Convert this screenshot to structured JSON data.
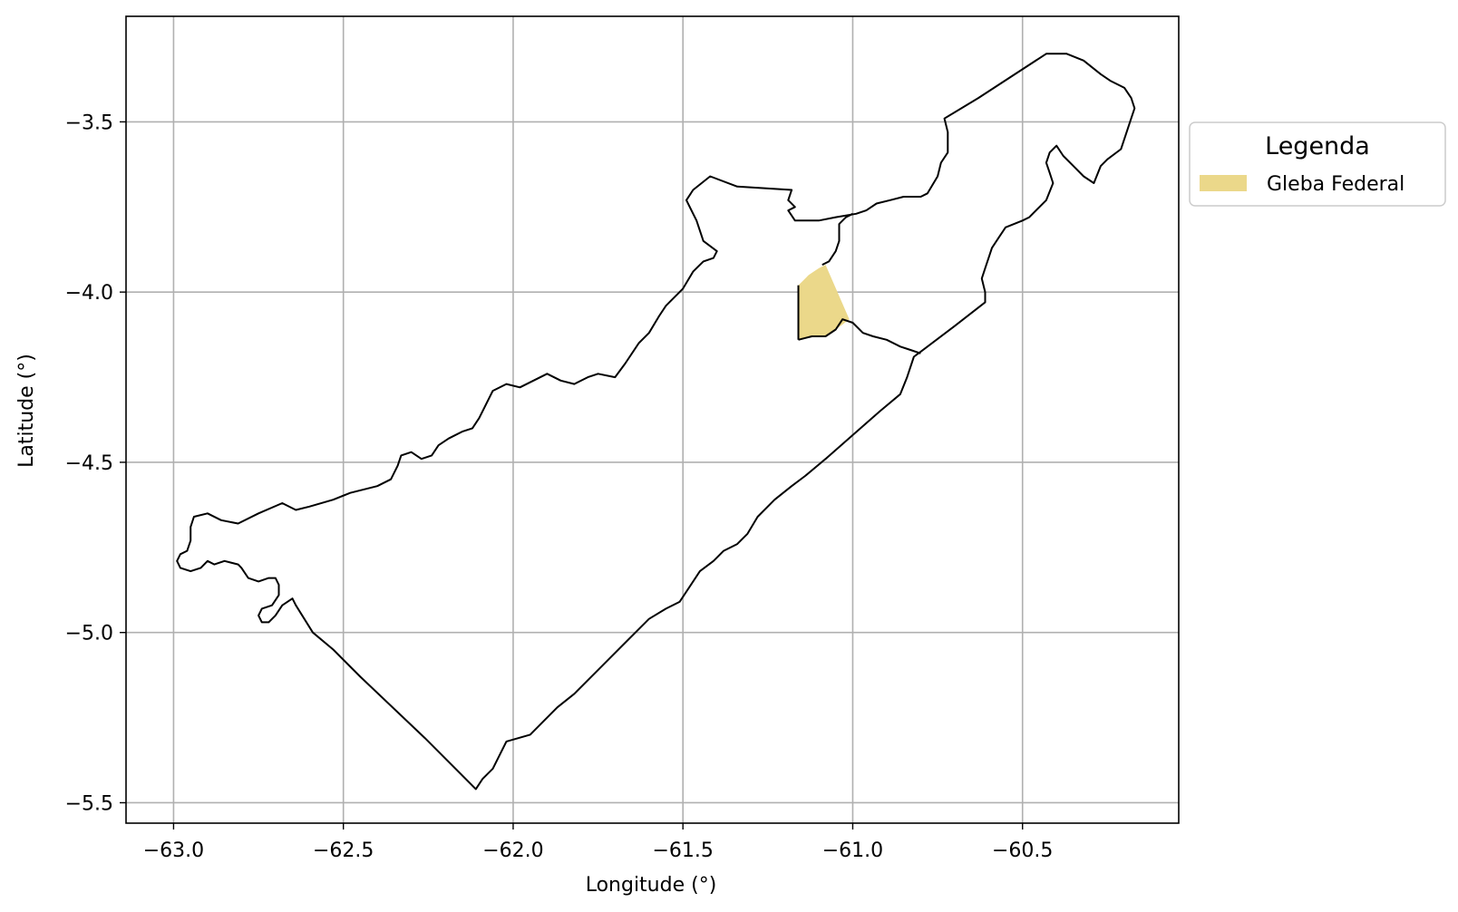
{
  "xlabel": "Longitude (°)",
  "ylabel": "Latitude (°)",
  "legend": {
    "title": "Legenda",
    "entries": [
      {
        "label": "Gleba Federal",
        "color": "#ebd88a"
      }
    ]
  },
  "colors": {
    "boundary": "#000000",
    "grid": "#b0b0b0",
    "gleba_fill": "#ebd88a"
  },
  "map_data": {
    "type": "map",
    "xlim": [
      -63.14,
      -60.04
    ],
    "ylim": [
      -5.56,
      -3.19
    ],
    "x_ticks": [
      -63.0,
      -62.5,
      -62.0,
      -61.5,
      -61.0,
      -60.5
    ],
    "x_tick_labels": [
      "−63.0",
      "−62.5",
      "−62.0",
      "−61.5",
      "−61.0",
      "−60.5"
    ],
    "y_ticks": [
      -3.5,
      -4.0,
      -4.5,
      -5.0,
      -5.5
    ],
    "y_tick_labels": [
      "−3.5",
      "−4.0",
      "−4.5",
      "−5.0",
      "−5.5"
    ],
    "grid": true,
    "legend_position": "outside-right-top",
    "outer_boundary": [
      [
        -62.99,
        -4.79
      ],
      [
        -62.98,
        -4.77
      ],
      [
        -62.96,
        -4.76
      ],
      [
        -62.95,
        -4.73
      ],
      [
        -62.95,
        -4.69
      ],
      [
        -62.94,
        -4.66
      ],
      [
        -62.9,
        -4.65
      ],
      [
        -62.86,
        -4.67
      ],
      [
        -62.81,
        -4.68
      ],
      [
        -62.75,
        -4.65
      ],
      [
        -62.68,
        -4.62
      ],
      [
        -62.64,
        -4.64
      ],
      [
        -62.6,
        -4.63
      ],
      [
        -62.53,
        -4.61
      ],
      [
        -62.48,
        -4.59
      ],
      [
        -62.4,
        -4.57
      ],
      [
        -62.36,
        -4.55
      ],
      [
        -62.34,
        -4.51
      ],
      [
        -62.33,
        -4.48
      ],
      [
        -62.3,
        -4.47
      ],
      [
        -62.27,
        -4.49
      ],
      [
        -62.24,
        -4.48
      ],
      [
        -62.22,
        -4.45
      ],
      [
        -62.19,
        -4.43
      ],
      [
        -62.15,
        -4.41
      ],
      [
        -62.12,
        -4.4
      ],
      [
        -62.1,
        -4.37
      ],
      [
        -62.08,
        -4.33
      ],
      [
        -62.06,
        -4.29
      ],
      [
        -62.02,
        -4.27
      ],
      [
        -61.98,
        -4.28
      ],
      [
        -61.94,
        -4.26
      ],
      [
        -61.9,
        -4.24
      ],
      [
        -61.86,
        -4.26
      ],
      [
        -61.82,
        -4.27
      ],
      [
        -61.78,
        -4.25
      ],
      [
        -61.75,
        -4.24
      ],
      [
        -61.7,
        -4.25
      ],
      [
        -61.67,
        -4.21
      ],
      [
        -61.63,
        -4.15
      ],
      [
        -61.6,
        -4.12
      ],
      [
        -61.57,
        -4.07
      ],
      [
        -61.55,
        -4.04
      ],
      [
        -61.5,
        -3.99
      ],
      [
        -61.47,
        -3.94
      ],
      [
        -61.44,
        -3.91
      ],
      [
        -61.41,
        -3.9
      ],
      [
        -61.4,
        -3.88
      ],
      [
        -61.44,
        -3.85
      ],
      [
        -61.46,
        -3.79
      ],
      [
        -61.49,
        -3.73
      ],
      [
        -61.47,
        -3.7
      ],
      [
        -61.42,
        -3.66
      ],
      [
        -61.34,
        -3.69
      ],
      [
        -61.18,
        -3.7
      ],
      [
        -61.19,
        -3.73
      ],
      [
        -61.17,
        -3.75
      ],
      [
        -61.19,
        -3.76
      ],
      [
        -61.17,
        -3.79
      ],
      [
        -61.1,
        -3.79
      ],
      [
        -61.05,
        -3.78
      ],
      [
        -60.99,
        -3.77
      ],
      [
        -60.96,
        -3.76
      ],
      [
        -60.93,
        -3.74
      ],
      [
        -60.89,
        -3.73
      ],
      [
        -60.85,
        -3.72
      ],
      [
        -60.8,
        -3.72
      ],
      [
        -60.78,
        -3.71
      ],
      [
        -60.75,
        -3.66
      ],
      [
        -60.74,
        -3.62
      ],
      [
        -60.72,
        -3.59
      ],
      [
        -60.72,
        -3.55
      ],
      [
        -60.72,
        -3.53
      ],
      [
        -60.73,
        -3.49
      ],
      [
        -60.63,
        -3.43
      ],
      [
        -60.43,
        -3.3
      ],
      [
        -60.37,
        -3.3
      ],
      [
        -60.32,
        -3.32
      ],
      [
        -60.27,
        -3.36
      ],
      [
        -60.24,
        -3.38
      ],
      [
        -60.2,
        -3.4
      ],
      [
        -60.18,
        -3.43
      ],
      [
        -60.17,
        -3.46
      ],
      [
        -60.19,
        -3.52
      ],
      [
        -60.21,
        -3.58
      ],
      [
        -60.25,
        -3.61
      ],
      [
        -60.27,
        -3.63
      ],
      [
        -60.29,
        -3.68
      ],
      [
        -60.32,
        -3.66
      ],
      [
        -60.35,
        -3.63
      ],
      [
        -60.38,
        -3.6
      ],
      [
        -60.4,
        -3.57
      ],
      [
        -60.42,
        -3.59
      ],
      [
        -60.43,
        -3.62
      ],
      [
        -60.42,
        -3.65
      ],
      [
        -60.41,
        -3.68
      ],
      [
        -60.43,
        -3.73
      ],
      [
        -60.45,
        -3.75
      ],
      [
        -60.48,
        -3.78
      ],
      [
        -60.5,
        -3.79
      ],
      [
        -60.55,
        -3.81
      ],
      [
        -60.57,
        -3.84
      ],
      [
        -60.59,
        -3.87
      ],
      [
        -60.6,
        -3.9
      ],
      [
        -60.61,
        -3.93
      ],
      [
        -60.62,
        -3.96
      ],
      [
        -60.61,
        -4.0
      ],
      [
        -60.61,
        -4.03
      ],
      [
        -60.7,
        -4.1
      ],
      [
        -60.78,
        -4.16
      ],
      [
        -60.82,
        -4.19
      ],
      [
        -60.84,
        -4.25
      ],
      [
        -60.86,
        -4.3
      ],
      [
        -60.92,
        -4.35
      ],
      [
        -61.0,
        -4.42
      ],
      [
        -61.08,
        -4.49
      ],
      [
        -61.14,
        -4.54
      ],
      [
        -61.18,
        -4.57
      ],
      [
        -61.23,
        -4.61
      ],
      [
        -61.28,
        -4.66
      ],
      [
        -61.31,
        -4.71
      ],
      [
        -61.34,
        -4.74
      ],
      [
        -61.38,
        -4.76
      ],
      [
        -61.41,
        -4.79
      ],
      [
        -61.45,
        -4.82
      ],
      [
        -61.47,
        -4.85
      ],
      [
        -61.51,
        -4.91
      ],
      [
        -61.55,
        -4.93
      ],
      [
        -61.6,
        -4.96
      ],
      [
        -61.67,
        -5.03
      ],
      [
        -61.74,
        -5.1
      ],
      [
        -61.82,
        -5.18
      ],
      [
        -61.87,
        -5.22
      ],
      [
        -61.91,
        -5.26
      ],
      [
        -61.95,
        -5.3
      ],
      [
        -62.02,
        -5.32
      ],
      [
        -62.06,
        -5.4
      ],
      [
        -62.09,
        -5.43
      ],
      [
        -62.11,
        -5.46
      ],
      [
        -62.26,
        -5.31
      ],
      [
        -62.45,
        -5.13
      ],
      [
        -62.53,
        -5.05
      ],
      [
        -62.59,
        -5.0
      ],
      [
        -62.64,
        -4.92
      ],
      [
        -62.65,
        -4.9
      ],
      [
        -62.68,
        -4.92
      ],
      [
        -62.7,
        -4.95
      ],
      [
        -62.72,
        -4.97
      ],
      [
        -62.74,
        -4.97
      ],
      [
        -62.75,
        -4.95
      ],
      [
        -62.74,
        -4.93
      ],
      [
        -62.71,
        -4.92
      ],
      [
        -62.69,
        -4.89
      ],
      [
        -62.69,
        -4.86
      ],
      [
        -62.7,
        -4.84
      ],
      [
        -62.72,
        -4.84
      ],
      [
        -62.75,
        -4.85
      ],
      [
        -62.78,
        -4.84
      ],
      [
        -62.8,
        -4.81
      ],
      [
        -62.81,
        -4.8
      ],
      [
        -62.85,
        -4.79
      ],
      [
        -62.88,
        -4.8
      ],
      [
        -62.9,
        -4.79
      ],
      [
        -62.92,
        -4.81
      ],
      [
        -62.95,
        -4.82
      ],
      [
        -62.98,
        -4.81
      ],
      [
        -62.99,
        -4.79
      ]
    ],
    "inner_river_divide": [
      [
        -61.09,
        -3.92
      ],
      [
        -61.07,
        -3.91
      ],
      [
        -61.05,
        -3.88
      ],
      [
        -61.04,
        -3.85
      ],
      [
        -61.04,
        -3.8
      ],
      [
        -61.02,
        -3.78
      ],
      [
        -61.0,
        -3.77
      ]
    ],
    "river_south": [
      [
        -61.16,
        -4.14
      ],
      [
        -61.12,
        -4.13
      ],
      [
        -61.08,
        -4.13
      ],
      [
        -61.05,
        -4.11
      ],
      [
        -61.03,
        -4.08
      ],
      [
        -61.0,
        -4.09
      ],
      [
        -60.97,
        -4.12
      ],
      [
        -60.94,
        -4.13
      ],
      [
        -60.9,
        -4.14
      ],
      [
        -60.86,
        -4.16
      ],
      [
        -60.83,
        -4.17
      ],
      [
        -60.8,
        -4.18
      ]
    ],
    "gleba_federal": [
      [
        -61.16,
        -3.98
      ],
      [
        -61.13,
        -3.95
      ],
      [
        -61.1,
        -3.93
      ],
      [
        -61.08,
        -3.92
      ],
      [
        -61.01,
        -4.08
      ],
      [
        -61.05,
        -4.11
      ],
      [
        -61.08,
        -4.13
      ],
      [
        -61.12,
        -4.13
      ],
      [
        -61.16,
        -4.14
      ],
      [
        -61.16,
        -3.98
      ]
    ]
  }
}
